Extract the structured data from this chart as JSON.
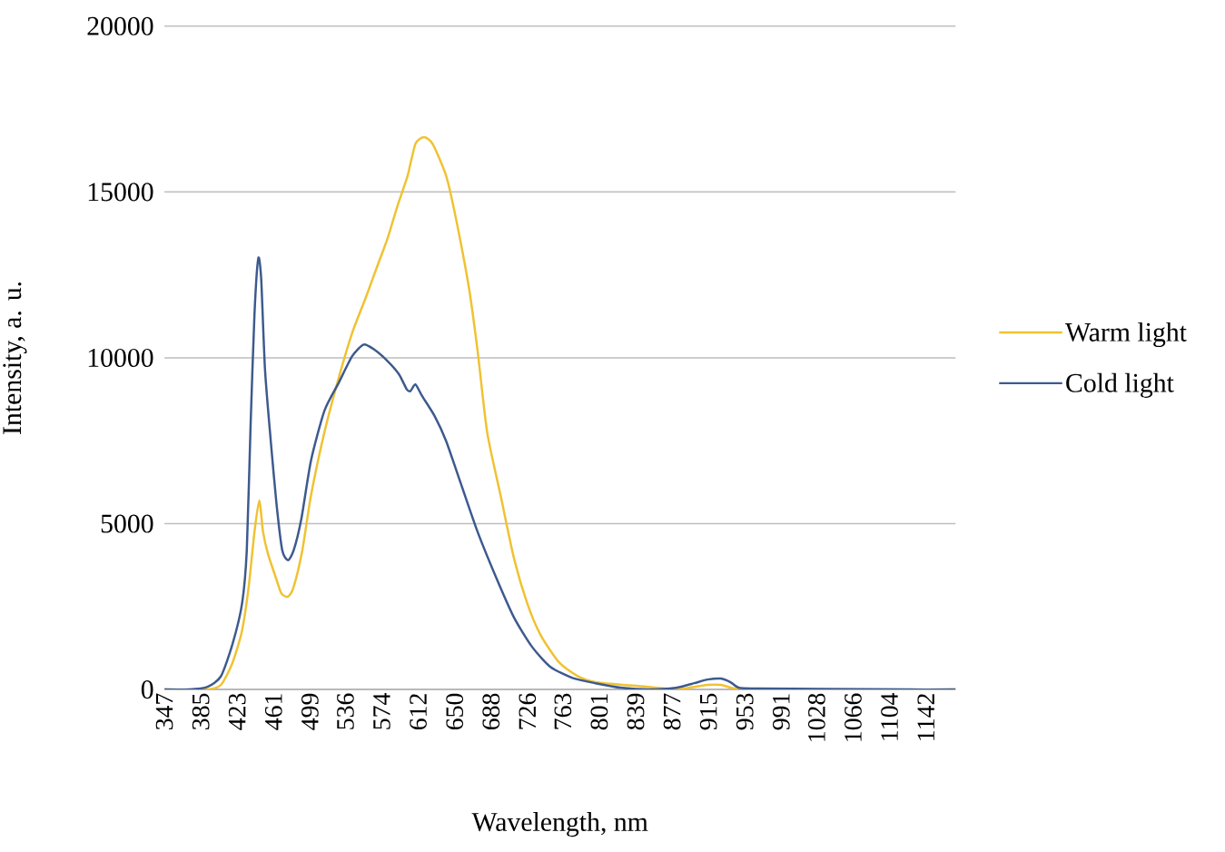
{
  "chart_data": {
    "type": "line",
    "xlabel": "Wavelength, nm",
    "ylabel": "Intensity, a. u.",
    "xlim": [
      347,
      1173
    ],
    "ylim": [
      0,
      20000
    ],
    "xticks": [
      347,
      385,
      423,
      461,
      499,
      536,
      574,
      612,
      650,
      688,
      726,
      763,
      801,
      839,
      877,
      915,
      953,
      991,
      1028,
      1066,
      1104,
      1142
    ],
    "yticks": [
      0,
      5000,
      10000,
      15000,
      20000
    ],
    "grid": "y",
    "legend": "right",
    "marker": "none",
    "line_style": "solid",
    "series": [
      {
        "name": "Warm light",
        "color": "#f0c232",
        "x": [
          347,
          392,
          406,
          418,
          428,
          435,
          441,
          446,
          450,
          455,
          463,
          469,
          476,
          482,
          491,
          500,
          514,
          529,
          543,
          557,
          571,
          580,
          590,
          601,
          609,
          618,
          627,
          641,
          651,
          665,
          674,
          684,
          698,
          712,
          726,
          740,
          759,
          778,
          797,
          825,
          853,
          881,
          900,
          914,
          928,
          942,
          966,
          1173
        ],
        "values": [
          0,
          0,
          140,
          800,
          1770,
          3100,
          4750,
          5700,
          4750,
          4100,
          3400,
          2900,
          2800,
          3100,
          4200,
          5850,
          7750,
          9400,
          10750,
          11800,
          12900,
          13600,
          14550,
          15500,
          16450,
          16650,
          16450,
          15500,
          14250,
          12100,
          10200,
          7750,
          5850,
          3950,
          2580,
          1630,
          820,
          410,
          220,
          140,
          80,
          0,
          80,
          140,
          140,
          30,
          0,
          0
        ]
      },
      {
        "name": "Cold light",
        "color": "#3d5a8e",
        "x": [
          347,
          373,
          392,
          406,
          418,
          428,
          433,
          437,
          441,
          445,
          448,
          452,
          458,
          464,
          470,
          476,
          482,
          490,
          500,
          514,
          529,
          543,
          555,
          566,
          580,
          592,
          600,
          604,
          609,
          616,
          629,
          641,
          656,
          674,
          693,
          712,
          731,
          750,
          773,
          797,
          825,
          853,
          881,
          900,
          914,
          928,
          938,
          947,
          966,
          1032,
          1126,
          1173
        ],
        "values": [
          0,
          0,
          80,
          400,
          1360,
          2580,
          4200,
          8000,
          11300,
          13000,
          12400,
          9650,
          7500,
          5600,
          4200,
          3900,
          4200,
          5150,
          6900,
          8400,
          9250,
          10050,
          10400,
          10250,
          9900,
          9500,
          9050,
          9000,
          9200,
          8850,
          8250,
          7500,
          6250,
          4750,
          3400,
          2170,
          1280,
          680,
          350,
          190,
          50,
          0,
          50,
          190,
          300,
          330,
          220,
          50,
          30,
          15,
          0,
          0
        ]
      }
    ]
  }
}
